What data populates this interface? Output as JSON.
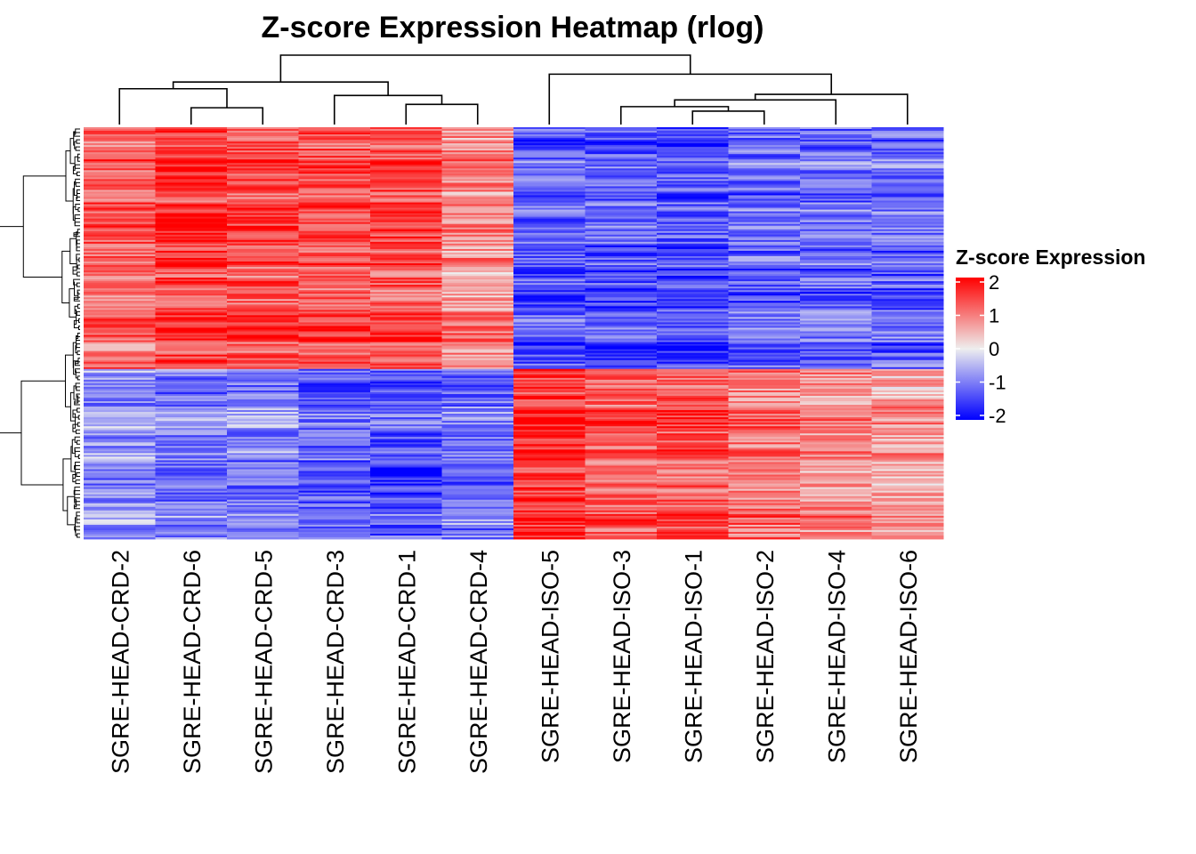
{
  "chart_data": {
    "type": "heatmap",
    "title": "Z-score Expression Heatmap (rlog)",
    "columns": [
      "SGRE-HEAD-CRD-2",
      "SGRE-HEAD-CRD-6",
      "SGRE-HEAD-CRD-5",
      "SGRE-HEAD-CRD-3",
      "SGRE-HEAD-CRD-1",
      "SGRE-HEAD-CRD-4",
      "SGRE-HEAD-ISO-5",
      "SGRE-HEAD-ISO-3",
      "SGRE-HEAD-ISO-1",
      "SGRE-HEAD-ISO-2",
      "SGRE-HEAD-ISO-4",
      "SGRE-HEAD-ISO-6"
    ],
    "column_dendrogram": {
      "merges": [
        {
          "a": 1,
          "b": 2,
          "height": 0.15
        },
        {
          "a": 4,
          "b": 5,
          "height": 0.18
        },
        {
          "a": 0,
          "b": -1,
          "height": 0.32
        },
        {
          "a": 3,
          "b": -2,
          "height": 0.26
        },
        {
          "a": -3,
          "b": -4,
          "height": 0.38
        },
        {
          "a": 8,
          "b": 9,
          "height": 0.12
        },
        {
          "a": 7,
          "b": -6,
          "height": 0.16
        },
        {
          "a": 10,
          "b": -7,
          "height": 0.22
        },
        {
          "a": 11,
          "b": -8,
          "height": 0.27
        },
        {
          "a": 6,
          "b": -9,
          "height": 0.45
        },
        {
          "a": -5,
          "b": -10,
          "height": 0.62
        }
      ]
    },
    "row_clusters": [
      {
        "name": "upper cluster (CRD high)",
        "fraction": 0.585,
        "column_means": [
          1.1,
          1.5,
          1.3,
          1.3,
          1.3,
          0.8,
          -1.3,
          -1.3,
          -1.4,
          -1.2,
          -1.2,
          -1.2
        ]
      },
      {
        "name": "lower cluster (ISO high)",
        "fraction": 0.415,
        "column_means": [
          -0.8,
          -1.0,
          -0.9,
          -1.2,
          -1.3,
          -1.1,
          1.6,
          1.2,
          1.3,
          1.0,
          0.8,
          0.6
        ]
      }
    ],
    "color_scale": {
      "min": -2,
      "max": 2,
      "stops": [
        {
          "value": -2,
          "color": "#0000ff"
        },
        {
          "value": 0,
          "color": "#eeeeee"
        },
        {
          "value": 2,
          "color": "#ff0000"
        }
      ]
    },
    "legend": {
      "title": "Z-score Expression",
      "ticks": [
        "2",
        "1",
        "0",
        "-1",
        "-2"
      ],
      "position": "right"
    }
  }
}
